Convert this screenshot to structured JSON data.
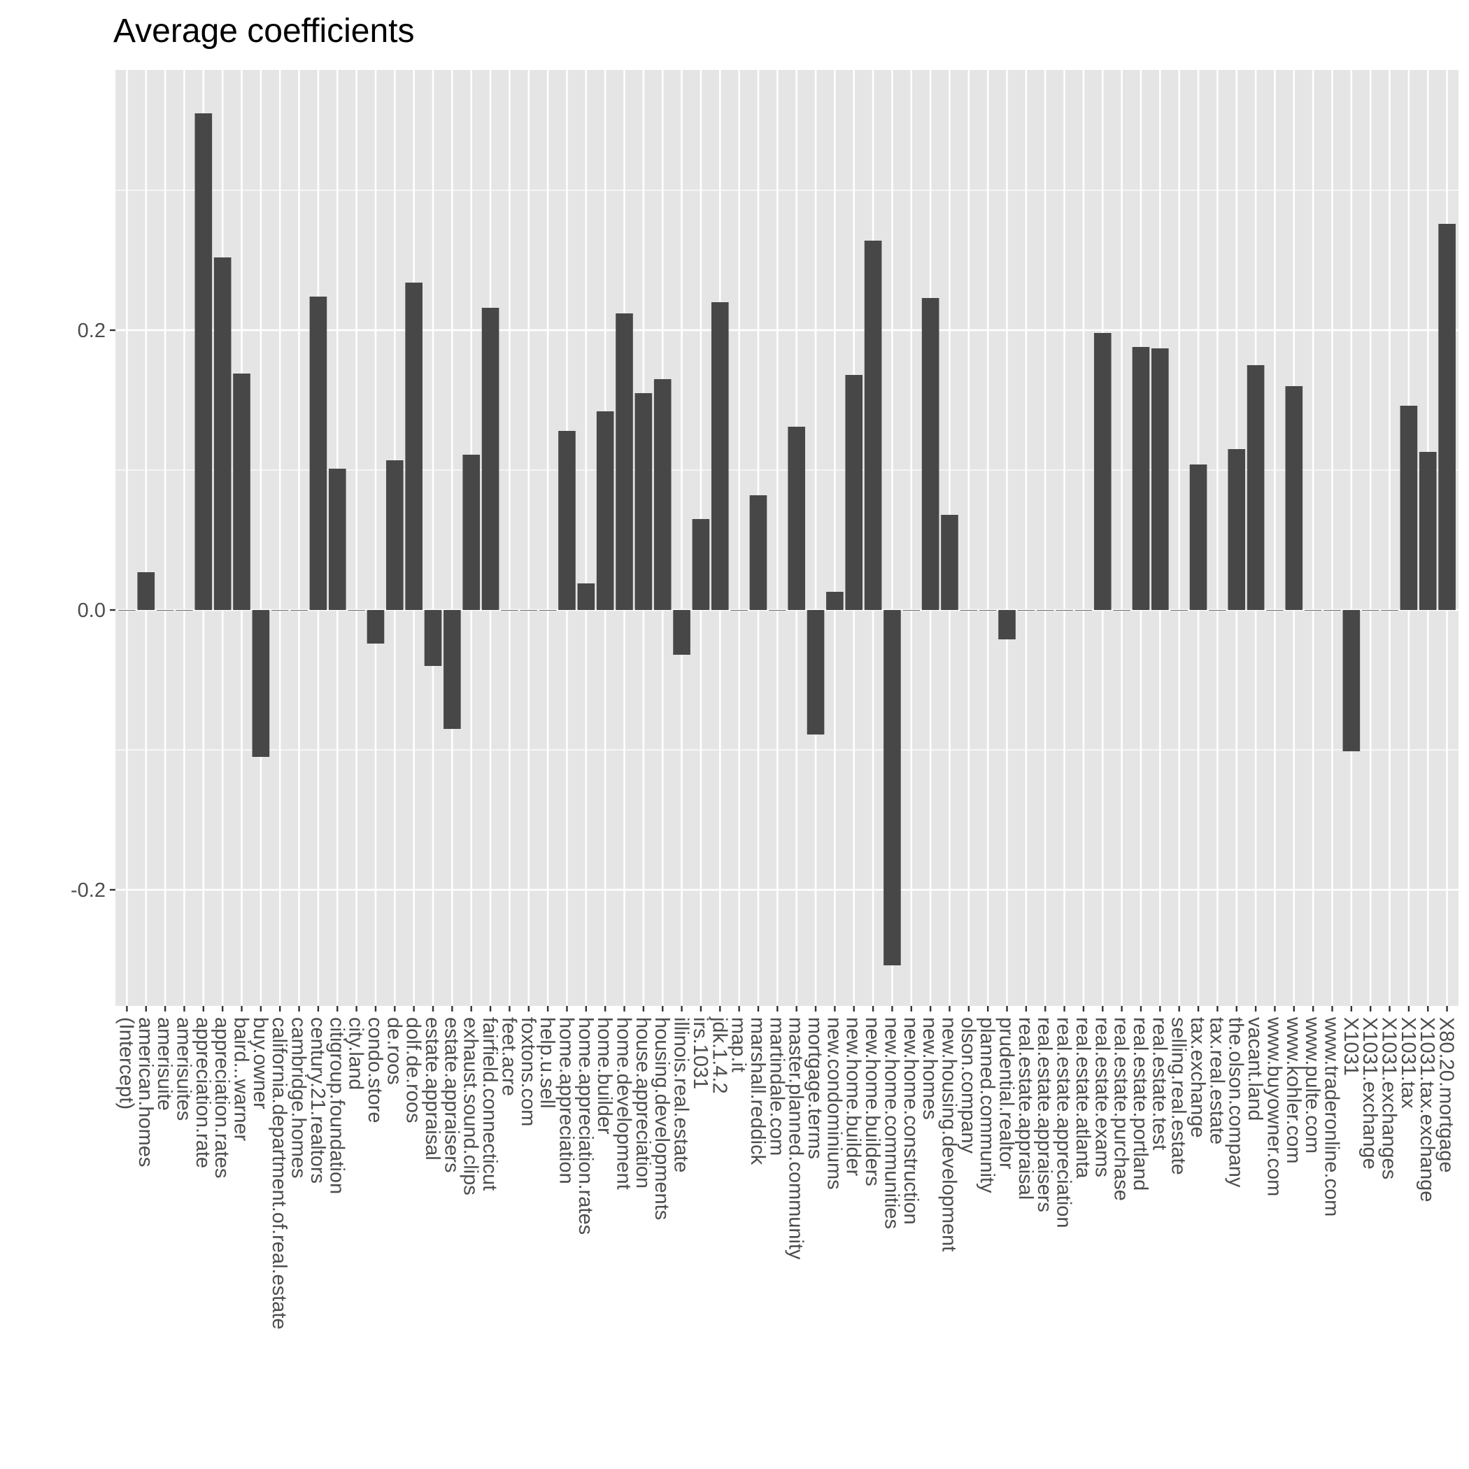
{
  "chart_data": {
    "type": "bar",
    "title": "Average coefficients",
    "xlabel": "",
    "ylabel": "",
    "ylim": [
      -0.283,
      0.386
    ],
    "yticks": [
      -0.2,
      0.0,
      0.2
    ],
    "ytick_labels": [
      "-0.2",
      "0.0",
      "0.2"
    ],
    "grid": true,
    "colors": {
      "panel": "#e5e5e5",
      "grid": "#ffffff",
      "bar": "#474747",
      "tick": "#4d4d4d"
    },
    "categories": [
      "(Intercept)",
      "american.homes",
      "amerisuite",
      "amerisuites",
      "appreciation.rate",
      "appreciation.rates",
      "baird...warner",
      "buy.owner",
      "california.department.of.real.estate",
      "cambridge.homes",
      "century.21.realtors",
      "citigroup.foundation",
      "city.land",
      "condo.store",
      "de.roos",
      "dolf.de.roos",
      "estate.appraisal",
      "estate.appraisers",
      "exhaust.sound.clips",
      "fairfield.connecticut",
      "feet.acre",
      "foxtons.com",
      "help.u.sell",
      "home.appreciation",
      "home.appreciation.rates",
      "home.builder",
      "home.development",
      "house.appreciation",
      "housing.developments",
      "illinois.real.estate",
      "irs.1031",
      "jdk.1.4.2",
      "map.it",
      "marshall.reddick",
      "martindale.com",
      "master.planned.community",
      "mortgage.terms",
      "new.condominiums",
      "new.home.builder",
      "new.home.builders",
      "new.home.communities",
      "new.home.construction",
      "new.homes",
      "new.housing.development",
      "olson.company",
      "planned.community",
      "prudential.realtor",
      "real.estate.appraisal",
      "real.estate.appraisers",
      "real.estate.appreciation",
      "real.estate.atlanta",
      "real.estate.exams",
      "real.estate.purchase",
      "real.estate.portland",
      "real.estate.test",
      "selling.real.estate",
      "tax.exchange",
      "tax.real.estate",
      "the.olson.company",
      "vacant.land",
      "www.buyowner.com",
      "www.kohler.com",
      "www.pulte.com",
      "www.traderonline.com",
      "X1031",
      "X1031.exchange",
      "X1031.exchanges",
      "X1031.tax",
      "X1031.tax.exchange",
      "X80.20.mortgage"
    ],
    "values": [
      0,
      0.027,
      0,
      0,
      0.355,
      0.252,
      0.169,
      -0.105,
      0,
      0,
      0.224,
      0.101,
      0,
      -0.024,
      0.107,
      0.234,
      -0.04,
      -0.085,
      0.111,
      0.216,
      0,
      0,
      0,
      0.128,
      0.019,
      0.142,
      0.212,
      0.155,
      0.165,
      -0.032,
      0.065,
      0.22,
      0,
      0.082,
      0,
      0.131,
      -0.089,
      0.013,
      0.168,
      0.264,
      -0.254,
      0,
      0.223,
      0.068,
      0,
      0,
      -0.021,
      0,
      0,
      0,
      0,
      0.198,
      0,
      0.188,
      0.187,
      0,
      0.104,
      0,
      0.115,
      0.175,
      0,
      0.16,
      0,
      0,
      -0.101,
      0,
      0,
      0.146,
      0.113,
      0.276
    ]
  }
}
